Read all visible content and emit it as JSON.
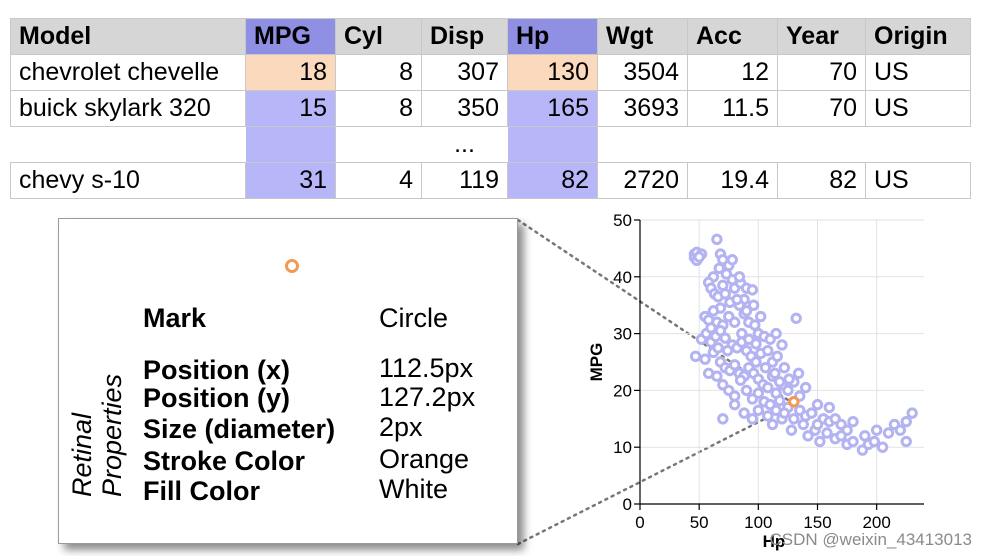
{
  "table": {
    "columns": [
      "Model",
      "MPG",
      "Cyl",
      "Disp",
      "Hp",
      "Wgt",
      "Acc",
      "Year",
      "Origin"
    ],
    "rows": [
      [
        "chevrolet chevelle",
        "18",
        "8",
        "307",
        "130",
        "3504",
        "12",
        "70",
        "US"
      ],
      [
        "buick skylark 320",
        "15",
        "8",
        "350",
        "165",
        "3693",
        "11.5",
        "70",
        "US"
      ],
      [
        "chevy s-10",
        "31",
        "4",
        "119",
        "82",
        "2720",
        "19.4",
        "82",
        "US"
      ]
    ],
    "ellipsis": "..."
  },
  "card": {
    "group_label_line1": "Retinal",
    "group_label_line2": "Properties",
    "properties": [
      {
        "name": "Mark",
        "value": "Circle"
      },
      {
        "name": "Position (x)",
        "value": "112.5px"
      },
      {
        "name": "Position (y)",
        "value": "127.2px"
      },
      {
        "name": "Size (diameter)",
        "value": "2px"
      },
      {
        "name": "Stroke Color",
        "value": "Orange"
      },
      {
        "name": "Fill Color",
        "value": "White"
      }
    ]
  },
  "colors": {
    "point": "#b3b3f2",
    "highlight": "#f29a55",
    "header_highlight": "#8f8fe3",
    "cell_highlight": "#b6b6f8"
  },
  "chart_data": {
    "type": "scatter",
    "xlabel": "Hp",
    "ylabel": "MPG",
    "xlim": [
      0,
      240
    ],
    "ylim": [
      0,
      50
    ],
    "x_ticks": [
      0,
      50,
      100,
      150,
      200
    ],
    "y_ticks": [
      0,
      10,
      20,
      30,
      40,
      50
    ],
    "grid": true,
    "highlight": {
      "x": 130,
      "y": 18
    },
    "points": [
      [
        46,
        44
      ],
      [
        46,
        43.4
      ],
      [
        48,
        44.3
      ],
      [
        52,
        44
      ],
      [
        48,
        42.9
      ],
      [
        50,
        43.5
      ],
      [
        65,
        46.6
      ],
      [
        68,
        44
      ],
      [
        67,
        41.5
      ],
      [
        70,
        43
      ],
      [
        75,
        42
      ],
      [
        62,
        40
      ],
      [
        58,
        39
      ],
      [
        60,
        38
      ],
      [
        63,
        37
      ],
      [
        66,
        36.5
      ],
      [
        70,
        38.5
      ],
      [
        72,
        37
      ],
      [
        78,
        39.5
      ],
      [
        80,
        38
      ],
      [
        85,
        38.9
      ],
      [
        90,
        38
      ],
      [
        95,
        37.7
      ],
      [
        88,
        36
      ],
      [
        84,
        35
      ],
      [
        76,
        35.5
      ],
      [
        68,
        34.5
      ],
      [
        62,
        34
      ],
      [
        55,
        33
      ],
      [
        58,
        32.4
      ],
      [
        65,
        32
      ],
      [
        70,
        31.5
      ],
      [
        75,
        33
      ],
      [
        80,
        32
      ],
      [
        88,
        33.5
      ],
      [
        92,
        32
      ],
      [
        97,
        31.5
      ],
      [
        100,
        30
      ],
      [
        105,
        29.5
      ],
      [
        110,
        29
      ],
      [
        115,
        30
      ],
      [
        132,
        32.7
      ],
      [
        52,
        29
      ],
      [
        56,
        30
      ],
      [
        60,
        28.5
      ],
      [
        64,
        29.5
      ],
      [
        68,
        30.5
      ],
      [
        72,
        29.2
      ],
      [
        78,
        28
      ],
      [
        82,
        27.5
      ],
      [
        86,
        28.5
      ],
      [
        90,
        27
      ],
      [
        94,
        26
      ],
      [
        98,
        28.2
      ],
      [
        102,
        26.5
      ],
      [
        108,
        27
      ],
      [
        112,
        25
      ],
      [
        116,
        26
      ],
      [
        120,
        28
      ],
      [
        122,
        24
      ],
      [
        47,
        26
      ],
      [
        55,
        25.5
      ],
      [
        62,
        26.7
      ],
      [
        68,
        25
      ],
      [
        72,
        24
      ],
      [
        76,
        23.5
      ],
      [
        80,
        24.5
      ],
      [
        84,
        23
      ],
      [
        88,
        22.5
      ],
      [
        92,
        24
      ],
      [
        96,
        23
      ],
      [
        100,
        22
      ],
      [
        104,
        21
      ],
      [
        108,
        20.5
      ],
      [
        112,
        22.5
      ],
      [
        115,
        19.5
      ],
      [
        120,
        21
      ],
      [
        125,
        20
      ],
      [
        130,
        21.5
      ],
      [
        135,
        19
      ],
      [
        140,
        20.5
      ],
      [
        58,
        23
      ],
      [
        65,
        22.5
      ],
      [
        70,
        21
      ],
      [
        75,
        20
      ],
      [
        80,
        19
      ],
      [
        85,
        21.8
      ],
      [
        90,
        20
      ],
      [
        95,
        18.5
      ],
      [
        100,
        19.5
      ],
      [
        105,
        18
      ],
      [
        110,
        17.5
      ],
      [
        115,
        16.5
      ],
      [
        118,
        18.2
      ],
      [
        125,
        17
      ],
      [
        130,
        18
      ],
      [
        135,
        16.5
      ],
      [
        140,
        15.5
      ],
      [
        145,
        16
      ],
      [
        150,
        17.5
      ],
      [
        155,
        15
      ],
      [
        160,
        14.5
      ],
      [
        165,
        15
      ],
      [
        170,
        14
      ],
      [
        175,
        13
      ],
      [
        180,
        14.5
      ],
      [
        190,
        12
      ],
      [
        200,
        13
      ],
      [
        210,
        12.5
      ],
      [
        215,
        14
      ],
      [
        220,
        13
      ],
      [
        225,
        14.5
      ],
      [
        230,
        16
      ],
      [
        225,
        11
      ],
      [
        188,
        9.5
      ],
      [
        193,
        10.5
      ],
      [
        70,
        15
      ],
      [
        80,
        17.5
      ],
      [
        88,
        16
      ],
      [
        95,
        15
      ],
      [
        100,
        16.5
      ],
      [
        108,
        15.5
      ],
      [
        112,
        14
      ],
      [
        120,
        15
      ],
      [
        128,
        13
      ],
      [
        138,
        14
      ],
      [
        142,
        12
      ],
      [
        148,
        13
      ],
      [
        152,
        11
      ],
      [
        158,
        12.5
      ],
      [
        165,
        11.5
      ],
      [
        170,
        12
      ],
      [
        175,
        10.5
      ],
      [
        180,
        11
      ],
      [
        198,
        11
      ],
      [
        205,
        10
      ],
      [
        160,
        17
      ],
      [
        150,
        14
      ],
      [
        130,
        15
      ],
      [
        122,
        16
      ],
      [
        98,
        25
      ],
      [
        86,
        30
      ],
      [
        74,
        27
      ],
      [
        90,
        34
      ],
      [
        82,
        36
      ],
      [
        96,
        35
      ],
      [
        102,
        33
      ],
      [
        60,
        31
      ],
      [
        66,
        27.5
      ],
      [
        73,
        40.5
      ],
      [
        78,
        43
      ],
      [
        84,
        40
      ],
      [
        92,
        29
      ],
      [
        106,
        24
      ],
      [
        114,
        23
      ],
      [
        118,
        21.5
      ],
      [
        126,
        22
      ],
      [
        134,
        23
      ]
    ]
  },
  "watermark": "CSDN @weixin_43413013"
}
